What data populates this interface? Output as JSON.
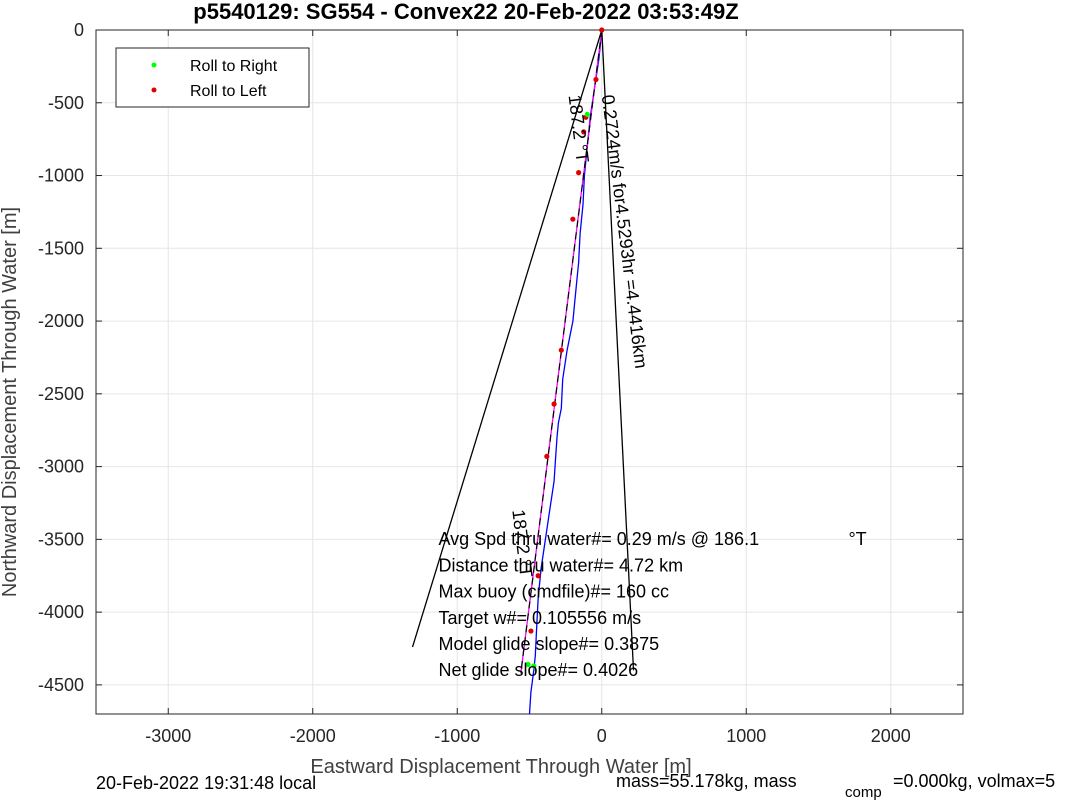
{
  "chart_data": {
    "type": "line",
    "title": "p5540129: SG554 - Convex22 20-Feb-2022 03:53:49Z",
    "xlabel": "Eastward Displacement Through Water [m]",
    "ylabel": "Northward Displacement Through Water [m]",
    "xlim": [
      -3500,
      2500
    ],
    "ylim": [
      -4700,
      0
    ],
    "xticks": [
      -3000,
      -2000,
      -1000,
      0,
      1000,
      2000
    ],
    "yticks": [
      0,
      -500,
      -1000,
      -1500,
      -2000,
      -2500,
      -3000,
      -3500,
      -4000,
      -4500
    ],
    "grid": true,
    "legend_position": "top-left",
    "legend": [
      {
        "name": "Roll to Right",
        "color": "#00ff00"
      },
      {
        "name": "Roll to Left",
        "color": "#e00000"
      }
    ],
    "series": [
      {
        "kind": "track",
        "color": "#0000ff",
        "x": [
          0,
          -20,
          -50,
          -80,
          -100,
          -120,
          -130,
          -150,
          -160,
          -180,
          -200,
          -240,
          -270,
          -280,
          -300,
          -310,
          -320,
          -330,
          -360,
          -390,
          -420,
          -440,
          -450,
          -460,
          -470,
          -490,
          -500
        ],
        "y": [
          0,
          -200,
          -400,
          -600,
          -800,
          -1000,
          -1200,
          -1400,
          -1600,
          -1800,
          -2000,
          -2200,
          -2400,
          -2600,
          -2700,
          -2800,
          -2950,
          -3100,
          -3300,
          -3500,
          -3700,
          -3900,
          -4100,
          -4300,
          -4400,
          -4550,
          -4700
        ]
      },
      {
        "kind": "track",
        "color": "#ff00ff",
        "x": [
          0,
          -560
        ],
        "y": [
          0,
          -4420
        ]
      },
      {
        "kind": "line",
        "color": "#000000",
        "x": [
          0,
          -1310
        ],
        "y": [
          0,
          -4240
        ]
      },
      {
        "kind": "line",
        "color": "#000000",
        "x": [
          0,
          220
        ],
        "y": [
          0,
          -4400
        ]
      },
      {
        "kind": "line",
        "color": "#000000",
        "dashed": true,
        "x": [
          0,
          -560
        ],
        "y": [
          0,
          -4420
        ]
      }
    ],
    "roll_left_points": {
      "x": [
        0,
        -40,
        -110,
        -125,
        -160,
        -200,
        -280,
        -330,
        -380,
        -440,
        -490
      ],
      "y": [
        0,
        -340,
        -600,
        -700,
        -980,
        -1300,
        -2200,
        -2570,
        -2930,
        -3750,
        -4130
      ]
    },
    "roll_right_points": {
      "x": [
        -100,
        -470,
        -510
      ],
      "y": [
        -580,
        -4370,
        -4360
      ]
    },
    "rotated_labels": [
      {
        "text": "0.2724m/s for4.5293hr =4.4416km",
        "x": 0,
        "y": -450
      },
      {
        "text": "187.2 °T",
        "x": -230,
        "y": -450
      },
      {
        "text": "187.2 °T",
        "x": -620,
        "y": -3300
      }
    ],
    "annotations": [
      {
        "text": "Avg Spd thru water#=  0.29 m/s @ 186.1",
        "suffix": "°T",
        "x": -1130,
        "y": -3540
      },
      {
        "text": "Distance thru water#=  4.72 km",
        "x": -1130,
        "y": -3720
      },
      {
        "text": "Max buoy (cmdfile)#= 160 cc",
        "x": -1130,
        "y": -3900
      },
      {
        "text": "Target w#= 0.105556 m/s",
        "x": -1130,
        "y": -4080
      },
      {
        "text": "Model glide slope#= 0.3875",
        "x": -1130,
        "y": -4260
      },
      {
        "text": "Net glide slope#= 0.4026",
        "x": -1130,
        "y": -4440
      }
    ]
  },
  "footer": {
    "local_time": "20-Feb-2022 19:31:48 local",
    "mass_text": "mass=55.178kg, mass",
    "comp_sub": "comp",
    "comp_text": "=0.000kg, volmax=5"
  }
}
